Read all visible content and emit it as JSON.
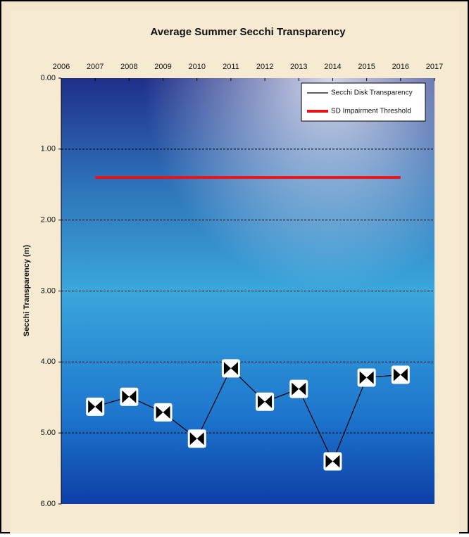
{
  "chart_data": {
    "type": "line",
    "title": "Average Summer Secchi Transparency",
    "y_label": "Secchi Transparency (m)",
    "xlim": [
      2006,
      2017
    ],
    "xticks": [
      2006,
      2007,
      2008,
      2009,
      2010,
      2011,
      2012,
      2013,
      2014,
      2015,
      2016,
      2017
    ],
    "ylim": [
      6,
      0
    ],
    "yticks": [
      {
        "value": 0,
        "label": "0.00"
      },
      {
        "value": 1,
        "label": "1.00"
      },
      {
        "value": 2,
        "label": "2.00"
      },
      {
        "value": 3,
        "label": "3.00"
      },
      {
        "value": 4,
        "label": "4.00"
      },
      {
        "value": 5,
        "label": "5.00"
      },
      {
        "value": 6,
        "label": "6.00"
      }
    ],
    "grid": true,
    "legend": "upper right",
    "series": [
      {
        "name": "Secchi Disk Transparency",
        "color": "#000000",
        "marker": true,
        "x": [
          2007,
          2008,
          2009,
          2010,
          2011,
          2012,
          2013,
          2014,
          2015,
          2016
        ],
        "values": [
          4.63,
          4.49,
          4.71,
          5.08,
          4.09,
          4.56,
          4.38,
          5.4,
          4.22,
          4.18
        ]
      },
      {
        "name": "SD Impairment Threshold",
        "color": "#e8141c",
        "marker": false,
        "x": [
          2007,
          2016
        ],
        "values": [
          1.4,
          1.4
        ]
      }
    ]
  }
}
